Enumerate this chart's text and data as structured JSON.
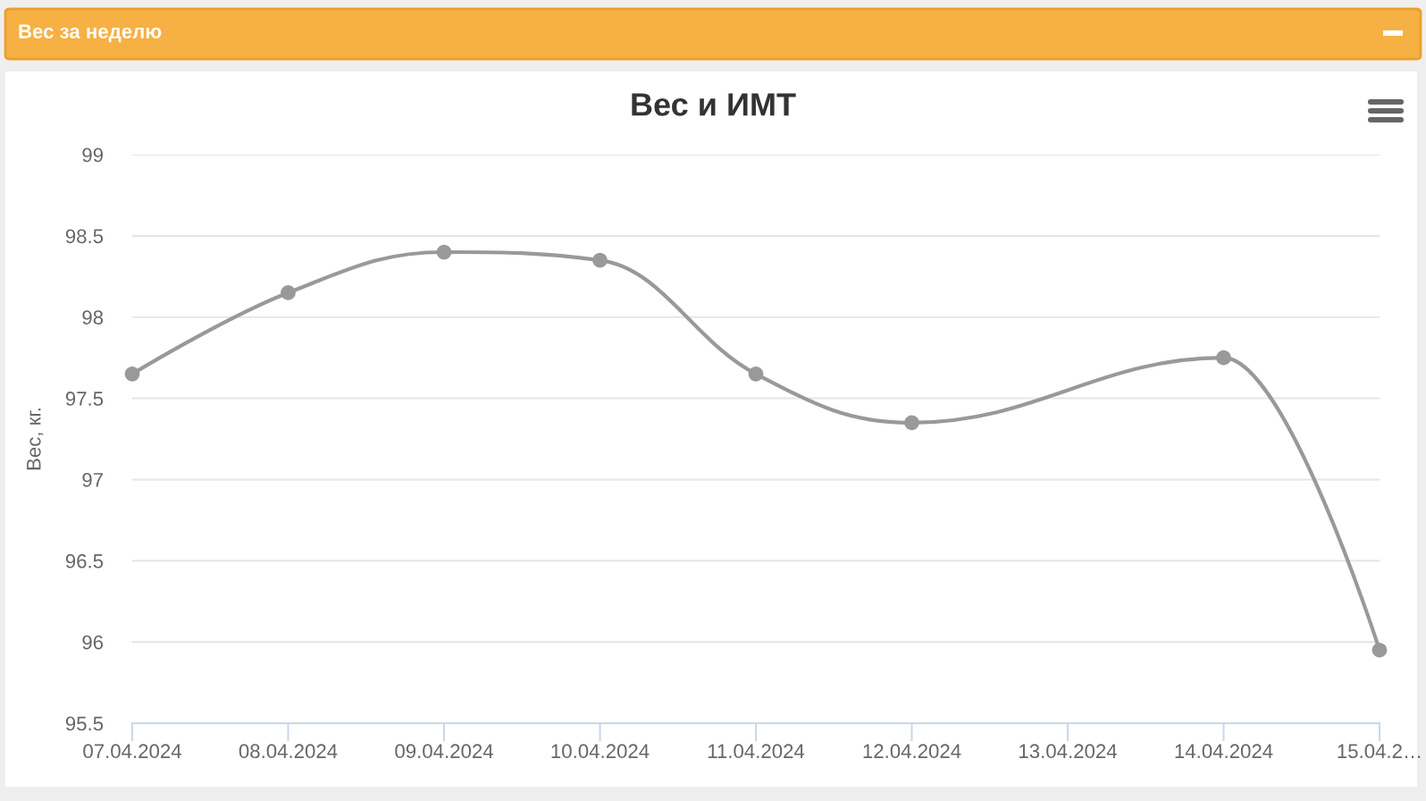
{
  "chart_data": {
    "type": "line",
    "title": "Вес и ИМТ",
    "ylabel": "Вес, кг.",
    "annotations": [
      "Вес за неделю"
    ],
    "x": [
      "2024-04-07",
      "2024-04-08",
      "2024-04-09",
      "2024-04-10",
      "2024-04-11",
      "2024-04-12",
      "2024-04-14",
      "2024-04-15"
    ],
    "series": [
      {
        "color": "#999999",
        "values": [
          97.65,
          98.15,
          98.4,
          98.35,
          97.65,
          97.35,
          97.75,
          95.95
        ]
      }
    ],
    "xlim": [
      "2024-04-07",
      "2024-04-15"
    ],
    "xticks": [
      {
        "value": "2024-04-07",
        "label": "07.04.2024"
      },
      {
        "value": "2024-04-08",
        "label": "08.04.2024"
      },
      {
        "value": "2024-04-09",
        "label": "09.04.2024"
      },
      {
        "value": "2024-04-10",
        "label": "10.04.2024"
      },
      {
        "value": "2024-04-11",
        "label": "11.04.2024"
      },
      {
        "value": "2024-04-12",
        "label": "12.04.2024"
      },
      {
        "value": "2024-04-13",
        "label": "13.04.2024"
      },
      {
        "value": "2024-04-14",
        "label": "14.04.2024"
      },
      {
        "value": "2024-04-15",
        "label": "15.04.2…"
      }
    ],
    "ylim": [
      95.5,
      99
    ],
    "yticks": [
      95.5,
      96,
      96.5,
      97,
      97.5,
      98,
      98.5,
      99
    ],
    "grid": "y",
    "marker": "circle",
    "line_style": "solid"
  }
}
